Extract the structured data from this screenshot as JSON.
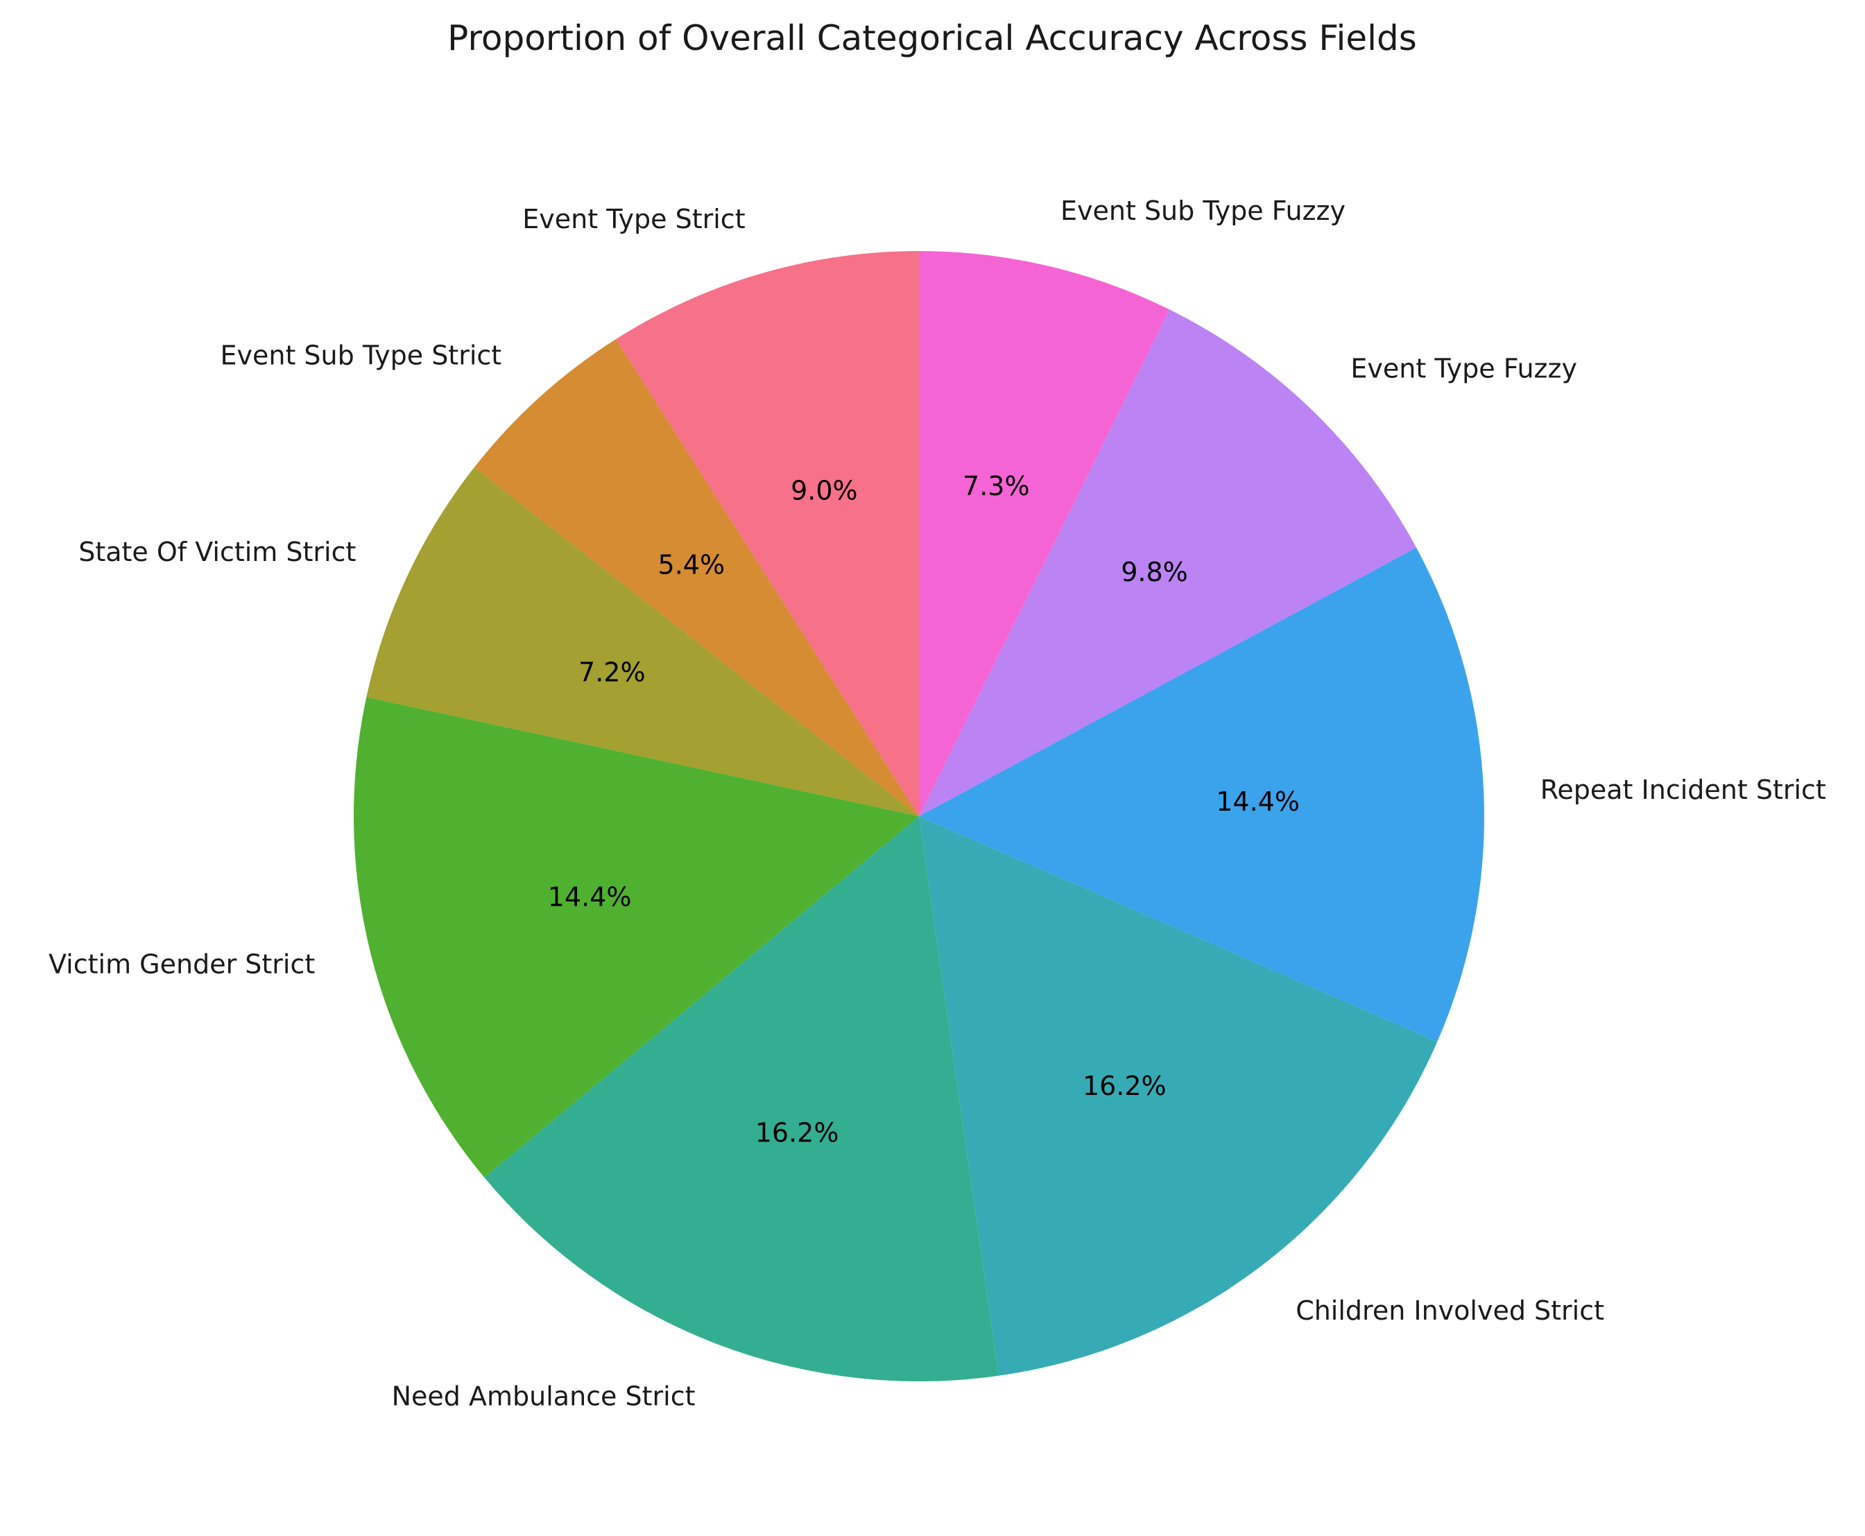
{
  "chart_data": {
    "type": "pie",
    "title": "Proportion of Overall Categorical Accuracy Across Fields",
    "start_angle_deg": 90,
    "direction": "counterclockwise",
    "slices": [
      {
        "label": "Event Type Strict",
        "value": 9.0,
        "pct_label": "9.0%",
        "color": "#f77189"
      },
      {
        "label": "Event Sub Type Strict",
        "value": 5.4,
        "pct_label": "5.4%",
        "color": "#d58c32"
      },
      {
        "label": "State Of Victim Strict",
        "value": 7.2,
        "pct_label": "7.2%",
        "color": "#a4a031"
      },
      {
        "label": "Victim Gender Strict",
        "value": 14.4,
        "pct_label": "14.4%",
        "color": "#50b131"
      },
      {
        "label": "Need Ambulance Strict",
        "value": 16.2,
        "pct_label": "16.2%",
        "color": "#34ae91"
      },
      {
        "label": "Children Involved Strict",
        "value": 16.2,
        "pct_label": "16.2%",
        "color": "#37abb5"
      },
      {
        "label": "Repeat Incident Strict",
        "value": 14.4,
        "pct_label": "14.4%",
        "color": "#3ba3ec"
      },
      {
        "label": "Event Type Fuzzy",
        "value": 9.8,
        "pct_label": "9.8%",
        "color": "#bb83f4"
      },
      {
        "label": "Event Sub Type Fuzzy",
        "value": 7.3,
        "pct_label": "7.3%",
        "color": "#f564d4"
      }
    ]
  }
}
